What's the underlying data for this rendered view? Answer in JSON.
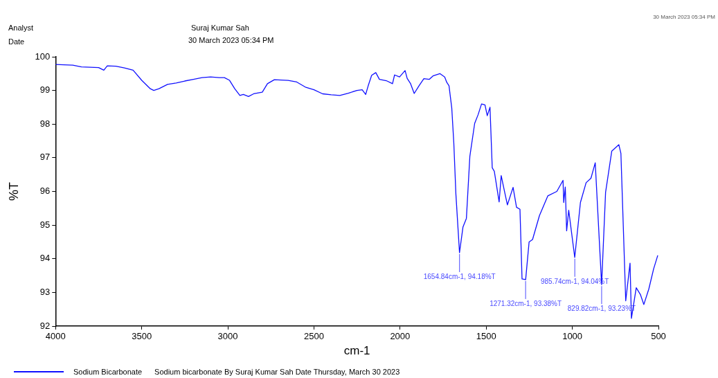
{
  "chart_data": {
    "type": "line",
    "xlabel": "cm-1",
    "ylabel": "%T",
    "xlim": [
      4000,
      500
    ],
    "xticks": [
      4000,
      3500,
      3000,
      2500,
      2000,
      1500,
      1000,
      500
    ],
    "ylim": [
      92,
      100
    ],
    "yticks": [
      92,
      93,
      94,
      95,
      96,
      97,
      98,
      99,
      100
    ],
    "legend": "bottom left",
    "series": [
      {
        "name": "Sodium Bicarbonate",
        "color": "#1010ff",
        "x": [
          4000,
          3900,
          3850,
          3750,
          3720,
          3700,
          3650,
          3600,
          3550,
          3500,
          3450,
          3430,
          3400,
          3350,
          3300,
          3250,
          3200,
          3150,
          3100,
          3050,
          3020,
          2990,
          2960,
          2930,
          2910,
          2880,
          2850,
          2800,
          2770,
          2730,
          2650,
          2600,
          2550,
          2500,
          2450,
          2400,
          2350,
          2300,
          2250,
          2220,
          2200,
          2185,
          2165,
          2141,
          2120,
          2080,
          2044,
          2032,
          2003,
          1971,
          1959,
          1939,
          1918,
          1890,
          1862,
          1830,
          1809,
          1769,
          1741,
          1729,
          1716,
          1700,
          1688,
          1676,
          1655,
          1635,
          1615,
          1595,
          1567,
          1547,
          1527,
          1507,
          1494,
          1478,
          1465,
          1453,
          1425,
          1413,
          1393,
          1377,
          1344,
          1324,
          1304,
          1292,
          1271,
          1251,
          1231,
          1191,
          1142,
          1090,
          1054,
          1050,
          1041,
          1033,
          1021,
          986,
          953,
          920,
          892,
          867,
          830,
          807,
          771,
          730,
          718,
          690,
          665,
          657,
          629,
          605,
          585,
          556,
          528,
          504
        ],
        "values": [
          99.77,
          99.75,
          99.7,
          99.68,
          99.6,
          99.73,
          99.72,
          99.67,
          99.6,
          99.3,
          99.05,
          99.0,
          99.05,
          99.18,
          99.22,
          99.28,
          99.33,
          99.38,
          99.4,
          99.38,
          99.38,
          99.3,
          99.05,
          98.85,
          98.88,
          98.82,
          98.9,
          98.95,
          99.2,
          99.32,
          99.3,
          99.25,
          99.1,
          99.02,
          98.9,
          98.87,
          98.85,
          98.92,
          99.0,
          99.02,
          98.88,
          99.14,
          99.45,
          99.53,
          99.33,
          99.29,
          99.2,
          99.46,
          99.4,
          99.59,
          99.36,
          99.2,
          98.91,
          99.14,
          99.35,
          99.33,
          99.43,
          99.5,
          99.4,
          99.24,
          99.14,
          98.48,
          97.43,
          95.92,
          94.18,
          94.94,
          95.2,
          97.04,
          98.02,
          98.28,
          98.6,
          98.57,
          98.25,
          98.5,
          96.7,
          96.6,
          95.69,
          96.47,
          95.98,
          95.6,
          96.12,
          95.53,
          95.47,
          93.4,
          93.38,
          94.5,
          94.57,
          95.28,
          95.87,
          96.0,
          96.33,
          95.67,
          96.13,
          94.83,
          95.44,
          94.04,
          95.67,
          96.26,
          96.39,
          96.85,
          93.23,
          95.97,
          97.2,
          97.39,
          97.13,
          92.75,
          93.87,
          92.23,
          93.14,
          92.94,
          92.64,
          93.1,
          93.7,
          94.1
        ]
      }
    ],
    "annotations": [
      "Analyst",
      "Suraj Kumar Sah",
      "Date",
      "30 March 2023 05:34 PM",
      "30 March 2023 05:34 PM",
      "Sodium bicarbonate By Suraj Kumar Sah Date Thursday, March 30 2023",
      {
        "text": "1654.84cm-1, 94.18%T",
        "x": 1654.84,
        "y": 94.18
      },
      {
        "text": "1271.32cm-1, 93.38%T",
        "x": 1271.32,
        "y": 93.38
      },
      {
        "text": "985.74cm-1, 94.04%T",
        "x": 985.74,
        "y": 94.04
      },
      {
        "text": "829.82cm-1, 93.23%T",
        "x": 829.82,
        "y": 93.23
      }
    ]
  }
}
